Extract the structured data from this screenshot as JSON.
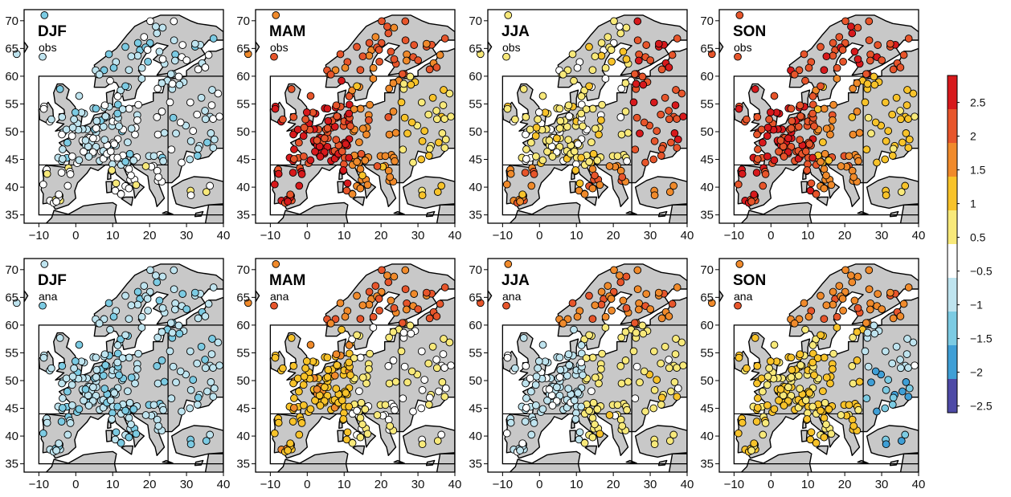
{
  "panels": [
    {
      "season": "DJF",
      "source": "obs"
    },
    {
      "season": "MAM",
      "source": "obs"
    },
    {
      "season": "JJA",
      "source": "obs"
    },
    {
      "season": "SON",
      "source": "obs"
    },
    {
      "season": "DJF",
      "source": "ana"
    },
    {
      "season": "MAM",
      "source": "ana"
    },
    {
      "season": "JJA",
      "source": "ana"
    },
    {
      "season": "SON",
      "source": "ana"
    }
  ],
  "axes": {
    "x_ticks": [
      "−10",
      "0",
      "10",
      "20",
      "30",
      "40"
    ],
    "y_ticks": [
      "35",
      "40",
      "45",
      "50",
      "55",
      "60",
      "65",
      "70"
    ],
    "xlim": [
      -14,
      40
    ],
    "ylim": [
      33.5,
      72
    ]
  },
  "colorbar": {
    "labels": [
      "2.5",
      "2",
      "1.5",
      "1",
      "0.5",
      "−0.5",
      "−1",
      "−1.5",
      "−2",
      "−2.5"
    ],
    "colors": [
      "#d7191c",
      "#e7552b",
      "#f08a2b",
      "#f8c32a",
      "#f8e97a",
      "#ffffff",
      "#bfe4ef",
      "#7ccbe3",
      "#3f9fd6",
      "#4e4aa6"
    ]
  },
  "colors": {
    "land": "#c8c8c8",
    "sea": "#ffffff",
    "coast": "#000000",
    "dot_border": "#000000"
  }
}
